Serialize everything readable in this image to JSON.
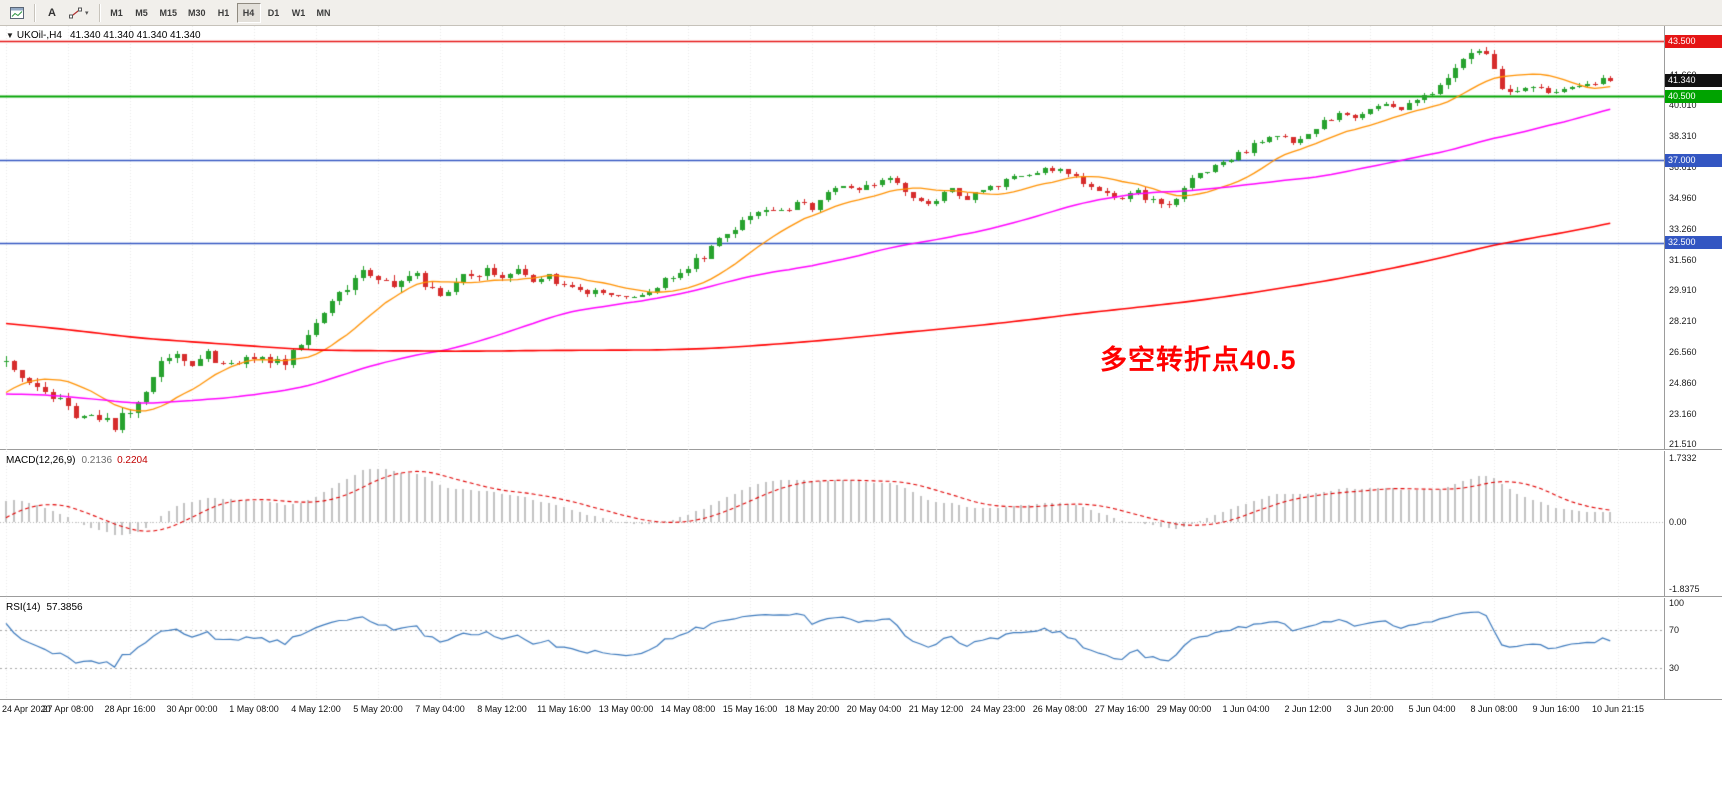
{
  "toolbar": {
    "timeframes": [
      "M1",
      "M5",
      "M15",
      "M30",
      "H1",
      "H4",
      "D1",
      "W1",
      "MN"
    ],
    "active_timeframe": "H4",
    "icons": {
      "text_tool": "A",
      "chevron_down": "▾"
    }
  },
  "main_chart": {
    "collapse_arrow": "▼",
    "title_symbol": "UKOil-,H4",
    "title_ohlc": "41.340 41.340 41.340 41.340",
    "annotation": {
      "text": "多空转折点40.5",
      "color": "#FF0000"
    },
    "axis_ticks": [
      "41.660",
      "40.010",
      "38.310",
      "36.610",
      "34.960",
      "33.260",
      "31.560",
      "29.910",
      "28.210",
      "26.560",
      "24.860",
      "23.160",
      "21.510"
    ],
    "levels": [
      {
        "price": 43.5,
        "label": "43.500",
        "color": "#e51515",
        "width": 1.5,
        "draw_line": true
      },
      {
        "price": 41.34,
        "label": "41.340",
        "color": "#111111",
        "width": 1,
        "draw_line": false,
        "current": true
      },
      {
        "price": 40.5,
        "label": "40.500",
        "color": "#00a300",
        "width": 2,
        "draw_line": true
      },
      {
        "price": 37.0,
        "label": "37.000",
        "color": "#3356c2",
        "width": 1.5,
        "draw_line": true
      },
      {
        "price": 32.5,
        "label": "32.500",
        "color": "#3356c2",
        "width": 1.5,
        "draw_line": true
      }
    ]
  },
  "macd_panel": {
    "name": "MACD(12,26,9)",
    "value_main": "0.2136",
    "value_signal": "0.2204",
    "axis_max_label": "1.7332",
    "axis_zero_label": "0.00",
    "axis_min_label": "-1.8375"
  },
  "rsi_panel": {
    "name": "RSI(14)",
    "value": "57.3856",
    "axis_labels": [
      "100",
      "70",
      "30"
    ]
  },
  "time_axis": {
    "labels": [
      "24 Apr 2020",
      "27 Apr 08:00",
      "28 Apr 16:00",
      "30 Apr 00:00",
      "1 May 08:00",
      "4 May 12:00",
      "5 May 20:00",
      "7 May 04:00",
      "8 May 12:00",
      "11 May 16:00",
      "13 May 00:00",
      "14 May 08:00",
      "15 May 16:00",
      "18 May 20:00",
      "20 May 04:00",
      "21 May 12:00",
      "24 May 23:00",
      "26 May 08:00",
      "27 May 16:00",
      "29 May 00:00",
      "1 Jun 04:00",
      "2 Jun 12:00",
      "3 Jun 20:00",
      "5 Jun 04:00",
      "8 Jun 08:00",
      "9 Jun 16:00",
      "10 Jun 21:15"
    ],
    "bars_per_label": 8
  },
  "chart_data": {
    "type": "candlestick",
    "symbol": "UKOil-",
    "timeframe": "H4",
    "bars": 208,
    "last_close": 41.34,
    "visible_range": {
      "price_top": 44.32,
      "price_bottom": 21.2
    },
    "price_axis_ticks": [
      41.66,
      40.01,
      38.31,
      36.61,
      34.96,
      33.26,
      31.56,
      29.91,
      28.21,
      26.56,
      24.86,
      23.16,
      21.51
    ],
    "horizontal_levels": [
      43.5,
      40.5,
      37.0,
      32.5
    ],
    "current_price": 41.34,
    "colors": {
      "up": "#27a22e",
      "down": "#d62c2c",
      "background": "#ffffff"
    },
    "price_anchors": [
      [
        0,
        25.9
      ],
      [
        3,
        25.1
      ],
      [
        6,
        24.1
      ],
      [
        8,
        23.4
      ],
      [
        11,
        22.9
      ],
      [
        14,
        22.6
      ],
      [
        16,
        23.2
      ],
      [
        18,
        24.6
      ],
      [
        20,
        25.7
      ],
      [
        22,
        26.2
      ],
      [
        24,
        26.0
      ],
      [
        26,
        26.6
      ],
      [
        28,
        25.8
      ],
      [
        30,
        25.9
      ],
      [
        32,
        26.2
      ],
      [
        34,
        25.9
      ],
      [
        36,
        26.1
      ],
      [
        38,
        26.9
      ],
      [
        40,
        28.1
      ],
      [
        42,
        29.2
      ],
      [
        44,
        30.2
      ],
      [
        46,
        31.1
      ],
      [
        48,
        30.7
      ],
      [
        50,
        29.9
      ],
      [
        52,
        30.9
      ],
      [
        54,
        30.2
      ],
      [
        56,
        29.8
      ],
      [
        58,
        30.3
      ],
      [
        60,
        30.8
      ],
      [
        62,
        31.0
      ],
      [
        64,
        30.6
      ],
      [
        66,
        30.9
      ],
      [
        68,
        30.4
      ],
      [
        70,
        30.6
      ],
      [
        72,
        30.2
      ],
      [
        74,
        29.8
      ],
      [
        76,
        29.9
      ],
      [
        78,
        29.6
      ],
      [
        80,
        29.5
      ],
      [
        82,
        29.6
      ],
      [
        84,
        30.1
      ],
      [
        86,
        30.7
      ],
      [
        88,
        31.2
      ],
      [
        90,
        31.8
      ],
      [
        92,
        32.6
      ],
      [
        94,
        33.3
      ],
      [
        96,
        34.0
      ],
      [
        98,
        34.5
      ],
      [
        100,
        34.2
      ],
      [
        102,
        34.7
      ],
      [
        104,
        34.4
      ],
      [
        106,
        35.1
      ],
      [
        108,
        35.5
      ],
      [
        110,
        35.2
      ],
      [
        112,
        35.8
      ],
      [
        114,
        36.0
      ],
      [
        116,
        35.3
      ],
      [
        118,
        34.6
      ],
      [
        120,
        34.9
      ],
      [
        122,
        35.3
      ],
      [
        124,
        35.0
      ],
      [
        126,
        35.4
      ],
      [
        128,
        35.7
      ],
      [
        130,
        36.0
      ],
      [
        132,
        36.2
      ],
      [
        134,
        36.5
      ],
      [
        136,
        36.4
      ],
      [
        138,
        36.1
      ],
      [
        140,
        35.6
      ],
      [
        142,
        35.2
      ],
      [
        144,
        34.9
      ],
      [
        146,
        35.3
      ],
      [
        148,
        34.7
      ],
      [
        150,
        34.5
      ],
      [
        152,
        35.6
      ],
      [
        154,
        36.3
      ],
      [
        156,
        36.7
      ],
      [
        158,
        37.1
      ],
      [
        160,
        37.6
      ],
      [
        162,
        38.0
      ],
      [
        164,
        38.3
      ],
      [
        166,
        38.1
      ],
      [
        168,
        38.5
      ],
      [
        170,
        39.1
      ],
      [
        172,
        39.5
      ],
      [
        174,
        39.3
      ],
      [
        176,
        39.8
      ],
      [
        178,
        40.0
      ],
      [
        180,
        39.7
      ],
      [
        182,
        40.2
      ],
      [
        184,
        40.8
      ],
      [
        186,
        41.7
      ],
      [
        188,
        42.7
      ],
      [
        190,
        43.2
      ],
      [
        191,
        42.9
      ],
      [
        192,
        42.0
      ],
      [
        193,
        41.1
      ],
      [
        194,
        40.8
      ],
      [
        196,
        41.0
      ],
      [
        198,
        40.8
      ],
      [
        200,
        40.7
      ],
      [
        202,
        41.0
      ],
      [
        204,
        41.1
      ],
      [
        206,
        41.4
      ],
      [
        207,
        41.34
      ]
    ],
    "volatility_anchors": [
      [
        0,
        0.5
      ],
      [
        14,
        0.55
      ],
      [
        18,
        0.7
      ],
      [
        24,
        0.55
      ],
      [
        38,
        0.5
      ],
      [
        48,
        0.6
      ],
      [
        56,
        0.5
      ],
      [
        72,
        0.35
      ],
      [
        80,
        0.3
      ],
      [
        88,
        0.4
      ],
      [
        96,
        0.45
      ],
      [
        104,
        0.35
      ],
      [
        120,
        0.35
      ],
      [
        136,
        0.3
      ],
      [
        144,
        0.35
      ],
      [
        152,
        0.45
      ],
      [
        160,
        0.35
      ],
      [
        176,
        0.3
      ],
      [
        184,
        0.4
      ],
      [
        190,
        0.5
      ],
      [
        194,
        0.45
      ],
      [
        200,
        0.3
      ],
      [
        207,
        0.25
      ]
    ],
    "prehistory_anchors": [
      [
        -220,
        34.0
      ],
      [
        -160,
        31.5
      ],
      [
        -100,
        28.0
      ],
      [
        -60,
        26.0
      ],
      [
        -30,
        24.5
      ],
      [
        -14,
        21.6
      ],
      [
        -5,
        24.8
      ],
      [
        -1,
        25.9
      ]
    ],
    "moving_averages": [
      {
        "name": "ma-fast",
        "period": 13,
        "color": "#ff9100",
        "width": 1.3
      },
      {
        "name": "ma-medium",
        "period": 55,
        "color": "#ff00ff",
        "width": 1.5
      },
      {
        "name": "ma-slow",
        "period": 200,
        "color": "#ff0000",
        "width": 1.6
      }
    ],
    "indicators": [
      {
        "type": "MACD",
        "params": [
          12,
          26,
          9
        ],
        "current": {
          "macd": 0.2136,
          "signal": 0.2204
        },
        "scale": {
          "max": 1.7332,
          "min": -1.8375
        },
        "colors": {
          "histogram": "#c3c3c3",
          "signal": "#e00000"
        }
      },
      {
        "type": "RSI",
        "params": [
          14
        ],
        "current": 57.3856,
        "levels": [
          70,
          30
        ],
        "scale": {
          "max": 100,
          "min": 0
        },
        "colors": {
          "line": "#3d7abd",
          "level": "#a6a6a6"
        }
      }
    ]
  }
}
